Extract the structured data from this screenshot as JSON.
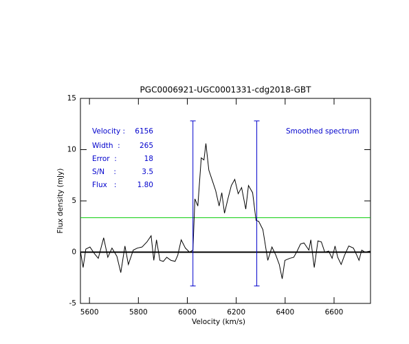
{
  "chart_data": {
    "type": "line",
    "title": "PGC0006921-UGC0001331-cdg2018-GBT",
    "x_label": "Velocity (km/s)",
    "y_label": "Flux density (mJy)",
    "color": "#000000",
    "x": [
      5563,
      5574,
      5585,
      5602,
      5622,
      5636,
      5658,
      5675,
      5692,
      5712,
      5728,
      5745,
      5759,
      5779,
      5796,
      5815,
      5835,
      5852,
      5863,
      5874,
      5888,
      5902,
      5916,
      5933,
      5950,
      5961,
      5975,
      5992,
      6009,
      6023,
      6031,
      6043,
      6057,
      6068,
      6076,
      6088,
      6102,
      6116,
      6130,
      6141,
      6152,
      6166,
      6180,
      6194,
      6208,
      6222,
      6239,
      6250,
      6267,
      6281,
      6292,
      6309,
      6329,
      6346,
      6362,
      6376,
      6388,
      6399,
      6419,
      6435,
      6449,
      6463,
      6477,
      6497,
      6505,
      6519,
      6534,
      6548,
      6562,
      6578,
      6592,
      6604,
      6615,
      6629,
      6643,
      6660,
      6679,
      6691,
      6702,
      6713,
      6727,
      6747
    ],
    "values": [
      0.1,
      -1.5,
      0.3,
      0.5,
      -0.2,
      -0.6,
      1.4,
      -0.5,
      0.4,
      -0.4,
      -2.0,
      0.6,
      -1.2,
      0.2,
      0.4,
      0.5,
      1.0,
      1.6,
      -0.8,
      1.2,
      -0.8,
      -0.9,
      -0.5,
      -0.8,
      -0.9,
      -0.3,
      1.2,
      0.4,
      0,
      0.2,
      5.2,
      4.5,
      9.2,
      9.0,
      10.6,
      8,
      7,
      6,
      4.5,
      5.8,
      3.8,
      5.2,
      6.5,
      7.1,
      5.7,
      6.3,
      4.2,
      6.5,
      5.8,
      3.1,
      3.0,
      2.2,
      -0.8,
      0.5,
      -0.3,
      -1.2,
      -2.6,
      -0.8,
      -0.6,
      -0.5,
      0.1,
      0.8,
      0.9,
      0.2,
      1.2,
      -1.5,
      1.1,
      1.0,
      0,
      0.1,
      -0.6,
      0.6,
      -0.5,
      -1.2,
      -0.3,
      0.6,
      0.4,
      -0.2,
      -0.8,
      0.2,
      0,
      0.1
    ],
    "xlim": [
      5563,
      6749
    ],
    "ylim": [
      -5,
      15
    ],
    "xticks": [
      5600,
      5800,
      6000,
      6200,
      6400,
      6600
    ],
    "yticks": [
      -5,
      0,
      5,
      10,
      15
    ],
    "hlines": [
      {
        "y": 0,
        "color": "#000000"
      },
      {
        "y": 3.36,
        "color": "#00cc00"
      }
    ],
    "vlines": [
      {
        "x": 6023,
        "ymin": -3.3,
        "ymax": 12.8,
        "color": "#0000cc"
      },
      {
        "x": 6284,
        "ymin": -3.3,
        "ymax": 12.8,
        "color": "#0000cc"
      }
    ],
    "info": [
      {
        "label": "Velocity :",
        "value": 6156
      },
      {
        "label": "Width  :",
        "value": 265
      },
      {
        "label": "Error  :",
        "value": 18
      },
      {
        "label": "S/N    :",
        "value": 3.5
      },
      {
        "label": "Flux   :",
        "value": "1.80"
      }
    ],
    "info_color": "#0000cc",
    "annotation": "Smoothed spectrum"
  }
}
